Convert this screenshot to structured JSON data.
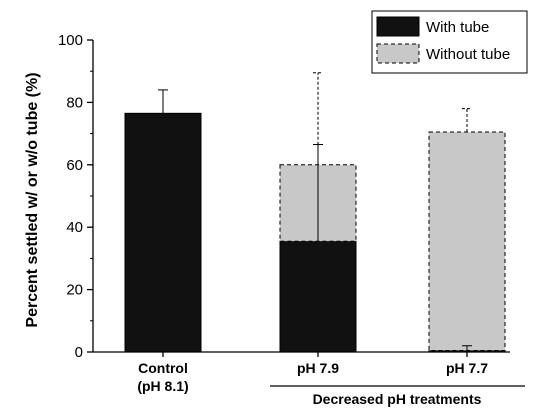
{
  "chart_data": {
    "type": "bar",
    "stacked": true,
    "categories": [
      {
        "line1": "Control",
        "line2": "(pH 8.1)"
      },
      {
        "line1": "pH 7.9",
        "line2": ""
      },
      {
        "line1": "pH 7.7",
        "line2": ""
      }
    ],
    "series": [
      {
        "name": "With tube",
        "color": "#111111",
        "border": "solid",
        "values": [
          76.5,
          35.5,
          0.5
        ],
        "errors": [
          7.5,
          31,
          1.5
        ]
      },
      {
        "name": "Without tube",
        "color": "#c8c8c8",
        "border": "dashed",
        "values": [
          0,
          24.5,
          70
        ],
        "errors": [
          0,
          29.5,
          7.5
        ]
      }
    ],
    "ylabel": "Percent settled w/ or w/o tube (%)",
    "ylim": [
      0,
      100
    ],
    "yticks": [
      0,
      20,
      40,
      60,
      80,
      100
    ],
    "group_label": "Decreased pH treatments",
    "group_categories": [
      1,
      2
    ],
    "legend_position": "top-right",
    "grid": false
  }
}
